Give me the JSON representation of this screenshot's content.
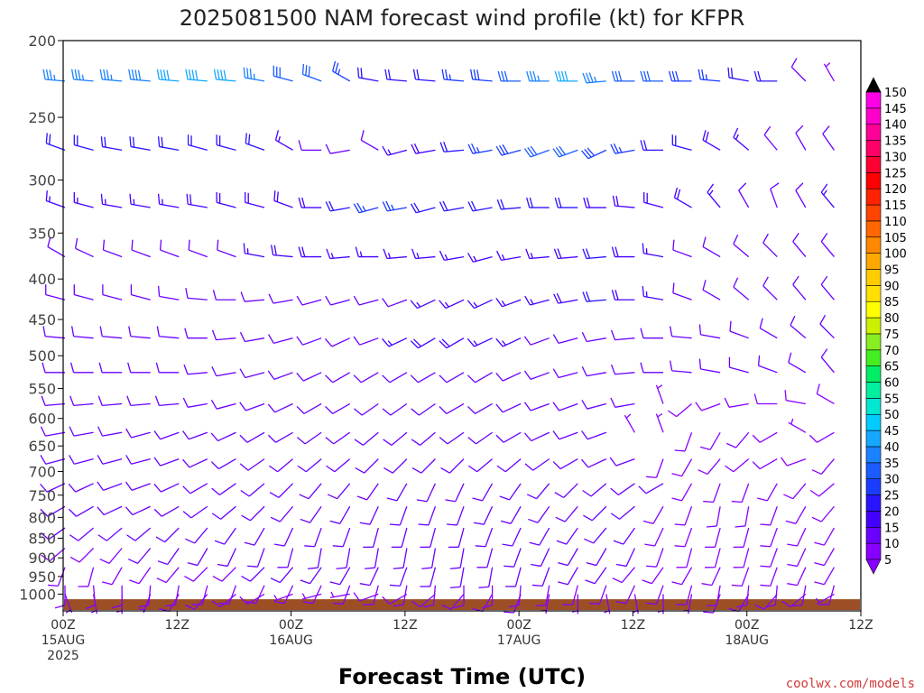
{
  "chart_data": {
    "type": "wind-barb time-height",
    "title": "2025081500 NAM forecast wind profile (kt) for KFPR",
    "xlabel": "Forecast Time (UTC)",
    "ylabel": "",
    "units": "kt",
    "credit": "coolwx.com/models",
    "y_ticks": [
      200,
      250,
      300,
      350,
      400,
      450,
      500,
      550,
      600,
      650,
      700,
      750,
      800,
      850,
      900,
      950,
      1000
    ],
    "y_range_hpa": [
      200,
      1050
    ],
    "y_scale": "log-pressure",
    "x_ticks": [
      {
        "hour": 0,
        "lines": [
          "00Z",
          "15AUG",
          "2025"
        ]
      },
      {
        "hour": 12,
        "lines": [
          "12Z"
        ]
      },
      {
        "hour": 24,
        "lines": [
          "00Z",
          "16AUG"
        ]
      },
      {
        "hour": 36,
        "lines": [
          "12Z"
        ]
      },
      {
        "hour": 48,
        "lines": [
          "00Z",
          "17AUG"
        ]
      },
      {
        "hour": 60,
        "lines": [
          "12Z"
        ]
      },
      {
        "hour": 72,
        "lines": [
          "00Z",
          "18AUG"
        ]
      },
      {
        "hour": 84,
        "lines": [
          "12Z"
        ]
      }
    ],
    "x_range_hours": [
      0,
      84
    ],
    "time_step_hours": 3,
    "levels_hpa": [
      225,
      275,
      325,
      375,
      425,
      475,
      525,
      575,
      625,
      675,
      725,
      775,
      825,
      875,
      925,
      975,
      1000
    ],
    "colorbar": {
      "values": [
        5,
        10,
        15,
        20,
        25,
        30,
        35,
        40,
        45,
        50,
        55,
        60,
        65,
        70,
        75,
        80,
        85,
        90,
        95,
        100,
        105,
        110,
        115,
        120,
        125,
        130,
        135,
        140,
        145,
        150
      ],
      "colors": [
        "#8800ff",
        "#6a00ff",
        "#4400ff",
        "#2a14ff",
        "#1a3cff",
        "#1a5cff",
        "#1a82ff",
        "#14a8ff",
        "#00ccff",
        "#00e8d0",
        "#00f0a0",
        "#00ee66",
        "#44ee22",
        "#88ee22",
        "#ccf000",
        "#ffff00",
        "#ffe000",
        "#ffcc00",
        "#ffa800",
        "#ff8800",
        "#ff6600",
        "#ff4400",
        "#ff2200",
        "#ff0000",
        "#ff0033",
        "#ff0066",
        "#ff0099",
        "#ff00cc",
        "#ff00e6",
        "#ff00ff"
      ]
    },
    "ground_color": "#9c4f24",
    "series": [
      {
        "level": 225,
        "dir": [
          275,
          275,
          275,
          275,
          275,
          275,
          275,
          280,
          285,
          290,
          300,
          280,
          275,
          275,
          275,
          275,
          270,
          270,
          270,
          265,
          270,
          270,
          270,
          275,
          280,
          270,
          315,
          330,
          320,
          300
        ],
        "spd": [
          35,
          35,
          35,
          38,
          40,
          42,
          40,
          35,
          30,
          30,
          25,
          20,
          20,
          22,
          25,
          28,
          32,
          35,
          40,
          35,
          30,
          30,
          28,
          25,
          22,
          20,
          10,
          5,
          5,
          10
        ]
      },
      {
        "level": 275,
        "dir": [
          290,
          285,
          280,
          280,
          280,
          285,
          285,
          290,
          300,
          270,
          260,
          300,
          255,
          260,
          265,
          260,
          255,
          250,
          250,
          245,
          260,
          270,
          285,
          300,
          310,
          320,
          330,
          325,
          320,
          310
        ],
        "spd": [
          20,
          20,
          20,
          22,
          22,
          22,
          22,
          20,
          15,
          10,
          10,
          12,
          15,
          18,
          20,
          25,
          28,
          30,
          30,
          28,
          25,
          22,
          20,
          18,
          15,
          12,
          10,
          10,
          10,
          10
        ]
      },
      {
        "level": 325,
        "dir": [
          290,
          285,
          280,
          280,
          280,
          280,
          285,
          285,
          290,
          270,
          260,
          255,
          260,
          255,
          260,
          260,
          265,
          270,
          270,
          270,
          275,
          285,
          300,
          320,
          330,
          340,
          330,
          320,
          320,
          320
        ],
        "spd": [
          15,
          15,
          15,
          15,
          15,
          18,
          18,
          18,
          18,
          18,
          20,
          25,
          25,
          22,
          22,
          22,
          22,
          20,
          20,
          18,
          18,
          18,
          18,
          15,
          12,
          10,
          12,
          15,
          12,
          10
        ]
      },
      {
        "level": 375,
        "dir": [
          300,
          295,
          290,
          290,
          290,
          290,
          290,
          280,
          275,
          270,
          265,
          270,
          265,
          265,
          260,
          255,
          260,
          265,
          265,
          265,
          270,
          280,
          290,
          300,
          310,
          315,
          320,
          320,
          320,
          320
        ],
        "spd": [
          12,
          12,
          12,
          12,
          12,
          12,
          12,
          15,
          18,
          18,
          15,
          15,
          15,
          15,
          15,
          15,
          15,
          15,
          18,
          20,
          18,
          15,
          12,
          12,
          12,
          12,
          12,
          12,
          12,
          12
        ]
      },
      {
        "level": 425,
        "dir": [
          285,
          285,
          285,
          285,
          280,
          275,
          270,
          265,
          260,
          255,
          255,
          255,
          250,
          245,
          245,
          245,
          250,
          255,
          260,
          265,
          270,
          280,
          290,
          300,
          310,
          315,
          320,
          320,
          315,
          315
        ],
        "spd": [
          12,
          12,
          12,
          12,
          12,
          12,
          12,
          12,
          12,
          12,
          12,
          12,
          12,
          15,
          15,
          15,
          15,
          15,
          18,
          20,
          18,
          15,
          12,
          12,
          12,
          12,
          12,
          12,
          12,
          12
        ]
      },
      {
        "level": 475,
        "dir": [
          275,
          275,
          275,
          275,
          275,
          270,
          265,
          260,
          255,
          250,
          245,
          250,
          245,
          240,
          240,
          245,
          245,
          250,
          255,
          260,
          265,
          270,
          275,
          280,
          290,
          300,
          310,
          315,
          300,
          270
        ],
        "spd": [
          10,
          10,
          10,
          10,
          10,
          10,
          10,
          10,
          10,
          10,
          10,
          12,
          15,
          18,
          18,
          15,
          15,
          12,
          12,
          12,
          12,
          12,
          12,
          12,
          12,
          12,
          10,
          10,
          10,
          10
        ]
      },
      {
        "level": 525,
        "dir": [
          270,
          270,
          270,
          270,
          270,
          265,
          260,
          255,
          250,
          245,
          240,
          240,
          240,
          240,
          240,
          240,
          245,
          250,
          255,
          260,
          265,
          270,
          275,
          280,
          285,
          290,
          300,
          320,
          330,
          340
        ],
        "spd": [
          10,
          10,
          10,
          10,
          10,
          10,
          10,
          10,
          10,
          10,
          10,
          10,
          10,
          10,
          10,
          10,
          10,
          10,
          10,
          10,
          10,
          10,
          10,
          10,
          10,
          10,
          10,
          10,
          10,
          10
        ]
      },
      {
        "level": 575,
        "dir": [
          265,
          265,
          265,
          265,
          265,
          260,
          255,
          250,
          245,
          240,
          240,
          235,
          235,
          235,
          240,
          240,
          245,
          250,
          250,
          255,
          260,
          340,
          230,
          250,
          260,
          270,
          280,
          300,
          320,
          330
        ],
        "spd": [
          10,
          10,
          10,
          10,
          10,
          10,
          10,
          10,
          10,
          10,
          10,
          10,
          10,
          10,
          10,
          10,
          10,
          10,
          10,
          10,
          10,
          5,
          8,
          8,
          8,
          8,
          8,
          8,
          8,
          8
        ]
      },
      {
        "level": 625,
        "dir": [
          260,
          260,
          260,
          255,
          250,
          250,
          245,
          240,
          240,
          235,
          235,
          230,
          230,
          230,
          235,
          235,
          240,
          245,
          250,
          250,
          330,
          340,
          200,
          210,
          220,
          240,
          300,
          240,
          230,
          220
        ],
        "spd": [
          10,
          10,
          10,
          10,
          10,
          10,
          10,
          10,
          10,
          10,
          10,
          10,
          10,
          10,
          10,
          10,
          10,
          10,
          10,
          10,
          5,
          5,
          8,
          8,
          8,
          8,
          5,
          8,
          8,
          8
        ]
      },
      {
        "level": 675,
        "dir": [
          255,
          255,
          255,
          255,
          250,
          245,
          240,
          235,
          230,
          230,
          230,
          225,
          225,
          225,
          225,
          230,
          230,
          235,
          240,
          245,
          250,
          200,
          210,
          220,
          230,
          240,
          250,
          220,
          230,
          240
        ],
        "spd": [
          10,
          10,
          10,
          10,
          10,
          10,
          10,
          10,
          10,
          10,
          10,
          10,
          10,
          10,
          10,
          10,
          10,
          10,
          10,
          10,
          10,
          8,
          8,
          8,
          8,
          8,
          8,
          8,
          8,
          8
        ]
      },
      {
        "level": 725,
        "dir": [
          245,
          245,
          250,
          250,
          245,
          240,
          235,
          230,
          225,
          220,
          220,
          215,
          210,
          205,
          205,
          210,
          215,
          220,
          225,
          230,
          235,
          240,
          210,
          200,
          200,
          210,
          220,
          230,
          200,
          190
        ],
        "spd": [
          10,
          10,
          10,
          10,
          10,
          10,
          10,
          10,
          10,
          10,
          10,
          10,
          10,
          10,
          10,
          10,
          10,
          10,
          10,
          10,
          10,
          10,
          8,
          8,
          8,
          8,
          8,
          8,
          8,
          8
        ]
      },
      {
        "level": 775,
        "dir": [
          240,
          240,
          245,
          245,
          240,
          235,
          230,
          225,
          220,
          215,
          210,
          205,
          200,
          200,
          200,
          205,
          210,
          215,
          220,
          225,
          230,
          210,
          200,
          190,
          190,
          200,
          210,
          220,
          210,
          200
        ],
        "spd": [
          10,
          10,
          10,
          10,
          10,
          10,
          10,
          10,
          10,
          10,
          10,
          10,
          10,
          10,
          10,
          10,
          10,
          10,
          10,
          10,
          10,
          8,
          8,
          8,
          8,
          8,
          8,
          8,
          8,
          8
        ]
      },
      {
        "level": 825,
        "dir": [
          235,
          230,
          230,
          230,
          225,
          220,
          215,
          210,
          205,
          200,
          200,
          195,
          195,
          195,
          195,
          200,
          205,
          210,
          215,
          220,
          215,
          205,
          200,
          195,
          195,
          200,
          205,
          210,
          210,
          210
        ],
        "spd": [
          10,
          10,
          10,
          10,
          10,
          10,
          10,
          10,
          10,
          10,
          10,
          10,
          10,
          10,
          10,
          10,
          10,
          10,
          10,
          10,
          10,
          8,
          8,
          8,
          8,
          8,
          8,
          8,
          8,
          8
        ]
      },
      {
        "level": 875,
        "dir": [
          230,
          225,
          220,
          220,
          215,
          210,
          205,
          200,
          195,
          190,
          190,
          190,
          190,
          190,
          190,
          195,
          200,
          205,
          210,
          210,
          205,
          200,
          195,
          195,
          195,
          200,
          205,
          210,
          215,
          215
        ],
        "spd": [
          8,
          8,
          8,
          10,
          10,
          10,
          10,
          10,
          10,
          10,
          10,
          10,
          10,
          10,
          10,
          10,
          10,
          10,
          10,
          10,
          10,
          8,
          8,
          8,
          8,
          8,
          8,
          8,
          8,
          8
        ]
      },
      {
        "level": 925,
        "dir": [
          200,
          195,
          210,
          215,
          220,
          225,
          225,
          225,
          220,
          215,
          210,
          205,
          200,
          195,
          190,
          190,
          195,
          200,
          210,
          215,
          220,
          215,
          210,
          205,
          200,
          200,
          205,
          210,
          215,
          220
        ],
        "spd": [
          8,
          8,
          8,
          8,
          8,
          8,
          8,
          10,
          10,
          10,
          10,
          10,
          10,
          10,
          10,
          10,
          10,
          10,
          10,
          10,
          8,
          8,
          8,
          8,
          8,
          8,
          8,
          8,
          8,
          8
        ]
      },
      {
        "level": 975,
        "dir": [
          180,
          175,
          180,
          185,
          190,
          195,
          200,
          205,
          205,
          205,
          200,
          195,
          190,
          185,
          180,
          180,
          185,
          190,
          195,
          200,
          205,
          200,
          195,
          190,
          185,
          185,
          190,
          195,
          200,
          205
        ],
        "spd": [
          8,
          8,
          8,
          8,
          8,
          8,
          8,
          8,
          8,
          8,
          8,
          8,
          8,
          8,
          8,
          8,
          8,
          8,
          8,
          8,
          8,
          8,
          8,
          8,
          8,
          8,
          8,
          8,
          8,
          8
        ]
      },
      {
        "level": 1000,
        "dir": [
          160,
          170,
          180,
          200,
          210,
          220,
          230,
          240,
          250,
          255,
          260,
          250,
          240,
          230,
          220,
          210,
          200,
          190,
          180,
          170,
          170,
          180,
          190,
          200,
          210,
          220,
          230,
          240,
          250,
          260
        ],
        "spd": [
          5,
          5,
          5,
          5,
          8,
          8,
          8,
          8,
          5,
          5,
          5,
          8,
          8,
          8,
          8,
          8,
          8,
          5,
          5,
          5,
          5,
          5,
          5,
          8,
          8,
          8,
          8,
          5,
          5,
          5
        ]
      }
    ]
  }
}
